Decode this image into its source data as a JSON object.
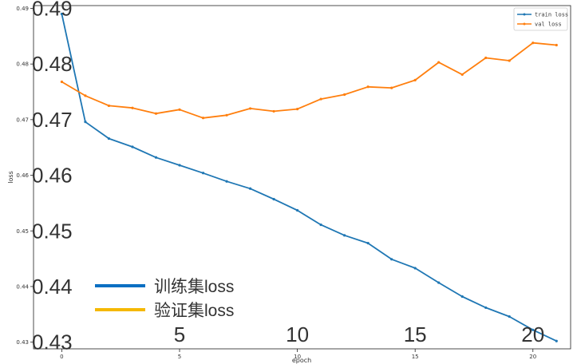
{
  "chart_data": {
    "type": "line",
    "xlabel": "epoch",
    "ylabel": "loss",
    "xlim": [
      -1.2,
      21.6
    ],
    "ylim": [
      0.4288,
      0.4905
    ],
    "x_ticks": [
      0,
      5,
      10,
      15,
      20
    ],
    "y_ticks": [
      0.43,
      0.44,
      0.45,
      0.46,
      0.47,
      0.48,
      0.49
    ],
    "overlay_x_ticks": [
      "5",
      "10",
      "15",
      "20"
    ],
    "overlay_y_ticks": [
      "0.43",
      "0.44",
      "0.45",
      "0.46",
      "0.47",
      "0.48",
      "0.49"
    ],
    "grid": false,
    "legend_position": "top-right",
    "x": [
      0,
      1,
      2,
      3,
      4,
      5,
      6,
      7,
      8,
      9,
      10,
      11,
      12,
      13,
      14,
      15,
      16,
      17,
      18,
      19,
      20,
      21
    ],
    "series": [
      {
        "name": "train loss",
        "color": "#1f77b4",
        "values": [
          0.489,
          0.4696,
          0.4666,
          0.4651,
          0.4632,
          0.4618,
          0.4604,
          0.4589,
          0.4576,
          0.4557,
          0.4537,
          0.4511,
          0.4492,
          0.4478,
          0.4449,
          0.4433,
          0.4407,
          0.4382,
          0.4362,
          0.4346,
          0.4322,
          0.4302
        ]
      },
      {
        "name": "val loss",
        "color": "#ff7f0e",
        "values": [
          0.4768,
          0.4743,
          0.4725,
          0.4721,
          0.4711,
          0.4718,
          0.4703,
          0.4708,
          0.472,
          0.4715,
          0.4719,
          0.4737,
          0.4745,
          0.4759,
          0.4757,
          0.4771,
          0.4803,
          0.4781,
          0.4811,
          0.4806,
          0.4838,
          0.4834
        ]
      }
    ],
    "overlay_legend": [
      {
        "label": "训练集loss",
        "color": "#0a6fc2"
      },
      {
        "label": "验证集loss",
        "color": "#f5b800"
      }
    ]
  }
}
